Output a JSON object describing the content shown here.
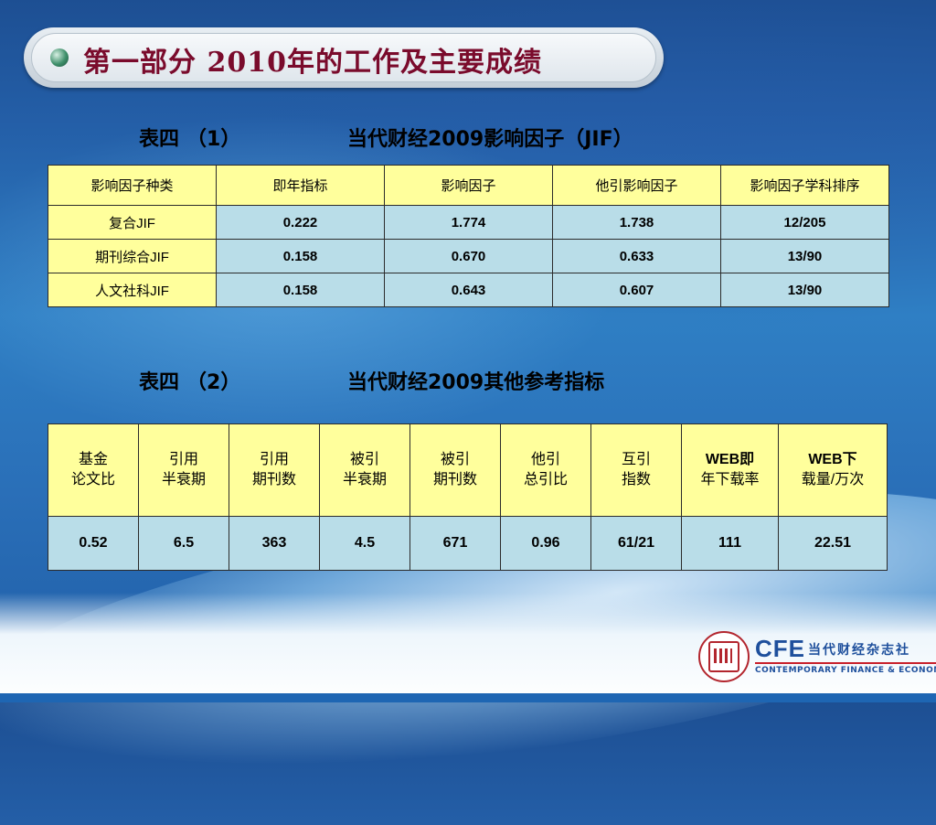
{
  "title": "第一部分  2010年的工作及主要成绩",
  "table1": {
    "caption_label": "表四",
    "caption_num": "（1）",
    "caption_desc": "当代财经2009影响因子（JIF）",
    "headers": [
      "影响因子种类",
      "即年指标",
      "影响因子",
      "他引影响因子",
      "影响因子学科排序"
    ],
    "rows": [
      {
        "label": "复合JIF",
        "values": [
          "0.222",
          "1.774",
          "1.738",
          "12/205"
        ]
      },
      {
        "label": "期刊综合JIF",
        "values": [
          "0.158",
          "0.670",
          "0.633",
          "13/90"
        ]
      },
      {
        "label": "人文社科JIF",
        "values": [
          "0.158",
          "0.643",
          "0.607",
          "13/90"
        ]
      }
    ]
  },
  "table2": {
    "caption_label": "表四",
    "caption_num": "（2）",
    "caption_desc": "当代财经2009其他参考指标",
    "headers": [
      [
        "基金",
        "论文比"
      ],
      [
        "引用",
        "半衰期"
      ],
      [
        "引用",
        "期刊数"
      ],
      [
        "被引",
        "半衰期"
      ],
      [
        "被引",
        "期刊数"
      ],
      [
        "他引",
        "总引比"
      ],
      [
        "互引",
        "指数"
      ],
      [
        "WEB即",
        "年下载率"
      ],
      [
        "WEB下",
        "载量/万次"
      ]
    ],
    "values": [
      "0.52",
      "6.5",
      "363",
      "4.5",
      "671",
      "0.96",
      "61/21",
      "111",
      "22.51"
    ]
  },
  "logo": {
    "brand": "CFE",
    "name_cn": "当代财经杂志社",
    "name_en": "CONTEMPORARY FINANCE & ECONOMICS"
  },
  "colors": {
    "header_fill": "#ffff9c",
    "value_fill": "#b9dde8",
    "title_text": "#7a0b2c"
  }
}
